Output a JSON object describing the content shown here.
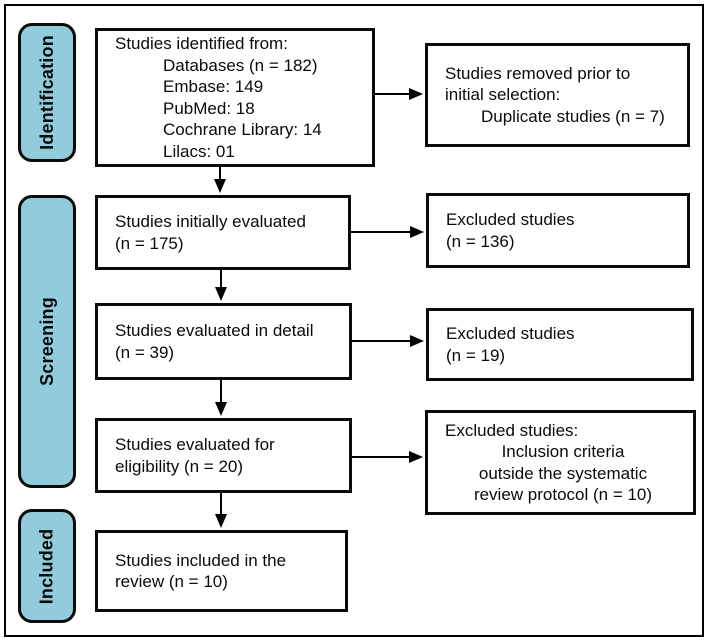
{
  "diagram": {
    "stages": [
      {
        "id": "identification",
        "label": "Identification"
      },
      {
        "id": "screening",
        "label": "Screening"
      },
      {
        "id": "included",
        "label": "Included"
      }
    ],
    "main_boxes": [
      {
        "id": "identified",
        "lines": [
          {
            "text": "Studies identified from:"
          },
          {
            "text": "Databases (n = 182)",
            "indent": true
          },
          {
            "text": "Embase: 149",
            "indent": true
          },
          {
            "text": "PubMed: 18",
            "indent": true
          },
          {
            "text": "Cochrane Library: 14",
            "indent": true
          },
          {
            "text": "Lilacs: 01",
            "indent": true
          }
        ]
      },
      {
        "id": "initially-evaluated",
        "lines": [
          {
            "text": "Studies initially evaluated"
          },
          {
            "text": "(n = 175)"
          }
        ]
      },
      {
        "id": "evaluated-detail",
        "lines": [
          {
            "text": "Studies evaluated in detail"
          },
          {
            "text": "(n = 39)"
          }
        ]
      },
      {
        "id": "evaluated-eligibility",
        "lines": [
          {
            "text": "Studies evaluated for"
          },
          {
            "text": "eligibility (n = 20)"
          }
        ]
      },
      {
        "id": "included-review",
        "lines": [
          {
            "text": "Studies included in the"
          },
          {
            "text": "review (n = 10)"
          }
        ]
      }
    ],
    "side_boxes": [
      {
        "id": "removed-prior",
        "lines": [
          {
            "text": "Studies removed prior to"
          },
          {
            "text": "initial selection:"
          },
          {
            "text": "Duplicate studies (n = 7)",
            "indent": true
          }
        ]
      },
      {
        "id": "excluded-136",
        "lines": [
          {
            "text": "Excluded studies"
          },
          {
            "text": "(n = 136)"
          }
        ]
      },
      {
        "id": "excluded-19",
        "lines": [
          {
            "text": "Excluded studies"
          },
          {
            "text": "(n = 19)"
          }
        ]
      },
      {
        "id": "excluded-criteria",
        "lines": [
          {
            "text": "Excluded studies:"
          },
          {
            "text": "Inclusion criteria",
            "center": true
          },
          {
            "text": "outside the systematic",
            "center": true
          },
          {
            "text": "review protocol (n = 10)",
            "center": true
          }
        ]
      }
    ],
    "colors": {
      "stage_fill": "#92ccdc",
      "box_border": "#000000",
      "background": "#ffffff"
    }
  }
}
